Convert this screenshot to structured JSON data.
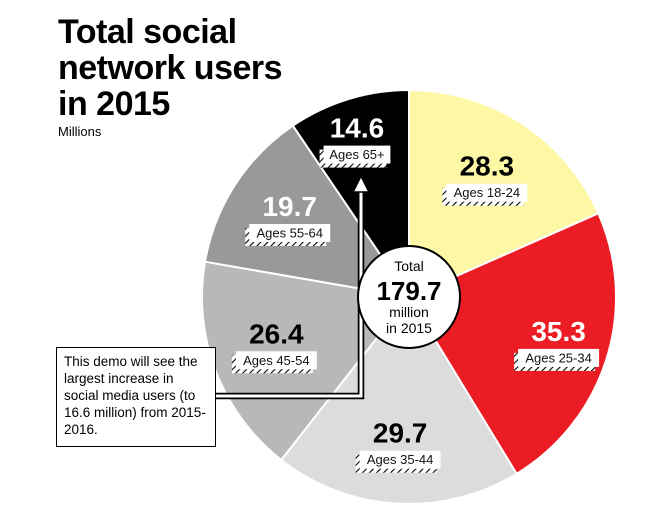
{
  "header": {
    "title_lines": [
      "Total social",
      "network users",
      "in 2015"
    ],
    "subtitle": "Millions"
  },
  "center": {
    "line1": "Total",
    "value": "179.7",
    "line3": "million",
    "line4": "in 2015"
  },
  "callout": {
    "text": "This demo will see the largest increase in social media users (to 16.6 million) from 2015-2016."
  },
  "colors": {
    "ages_18_24": "#fdf7a6",
    "ages_25_34": "#ec1c24",
    "ages_35_44": "#dcdcdc",
    "ages_45_54": "#b8b8b8",
    "ages_55_64": "#999999",
    "ages_65_plus": "#000000"
  },
  "chart_data": {
    "type": "pie",
    "title": "Total social network users in 2015",
    "subtitle": "Millions",
    "total": 179.7,
    "slices": [
      {
        "label": "Ages 18-24",
        "value": 28.3,
        "value_text": "28.3",
        "color_key": "ages_18_24",
        "value_color": "#000000"
      },
      {
        "label": "Ages 25-34",
        "value": 35.3,
        "value_text": "35.3",
        "color_key": "ages_25_34",
        "value_color": "#ffffff"
      },
      {
        "label": "Ages 35-44",
        "value": 29.7,
        "value_text": "29.7",
        "color_key": "ages_35_44",
        "value_color": "#000000"
      },
      {
        "label": "Ages 45-54",
        "value": 26.4,
        "value_text": "26.4",
        "color_key": "ages_45_54",
        "value_color": "#000000"
      },
      {
        "label": "Ages 55-64",
        "value": 19.7,
        "value_text": "19.7",
        "color_key": "ages_55_64",
        "value_color": "#ffffff"
      },
      {
        "label": "Ages 65+",
        "value": 14.6,
        "value_text": "14.6",
        "color_key": "ages_65_plus",
        "value_color": "#ffffff"
      }
    ]
  }
}
